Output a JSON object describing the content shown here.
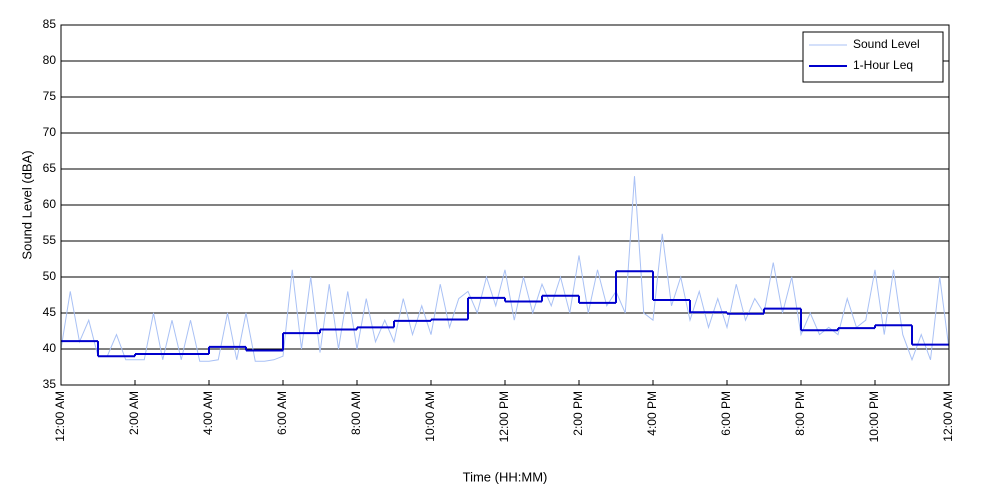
{
  "chart_data": {
    "type": "line",
    "xlabel": "Time (HH:MM)",
    "ylabel": "Sound Level (dBA)",
    "xlim": [
      0,
      24
    ],
    "ylim": [
      35,
      85
    ],
    "yticks": [
      35,
      40,
      45,
      50,
      55,
      60,
      65,
      70,
      75,
      80,
      85
    ],
    "xticks": [
      {
        "value": 0,
        "label": "12:00 AM"
      },
      {
        "value": 2,
        "label": "2:00 AM"
      },
      {
        "value": 4,
        "label": "4:00 AM"
      },
      {
        "value": 6,
        "label": "6:00 AM"
      },
      {
        "value": 8,
        "label": "8:00 AM"
      },
      {
        "value": 10,
        "label": "10:00 AM"
      },
      {
        "value": 12,
        "label": "12:00 PM"
      },
      {
        "value": 14,
        "label": "2:00 PM"
      },
      {
        "value": 16,
        "label": "4:00 PM"
      },
      {
        "value": 18,
        "label": "6:00 PM"
      },
      {
        "value": 20,
        "label": "8:00 PM"
      },
      {
        "value": 22,
        "label": "10:00 PM"
      },
      {
        "value": 24,
        "label": "12:00 AM"
      }
    ],
    "grid": true,
    "legend": "upper right",
    "series": [
      {
        "name": "Sound Level",
        "color": "#a9c1f5",
        "step": false,
        "x": [
          0,
          0.25,
          0.5,
          0.75,
          1,
          1.25,
          1.5,
          1.75,
          2,
          2.25,
          2.5,
          2.75,
          3,
          3.25,
          3.5,
          3.75,
          4,
          4.25,
          4.5,
          4.75,
          5,
          5.25,
          5.5,
          5.75,
          6,
          6.25,
          6.5,
          6.75,
          7,
          7.25,
          7.5,
          7.75,
          8,
          8.25,
          8.5,
          8.75,
          9,
          9.25,
          9.5,
          9.75,
          10,
          10.25,
          10.5,
          10.75,
          11,
          11.25,
          11.5,
          11.75,
          12,
          12.25,
          12.5,
          12.75,
          13,
          13.25,
          13.5,
          13.75,
          14,
          14.25,
          14.5,
          14.75,
          15,
          15.25,
          15.5,
          15.75,
          16,
          16.25,
          16.5,
          16.75,
          17,
          17.25,
          17.5,
          17.75,
          18,
          18.25,
          18.5,
          18.75,
          19,
          19.25,
          19.5,
          19.75,
          20,
          20.25,
          20.5,
          20.75,
          21,
          21.25,
          21.5,
          21.75,
          22,
          22.25,
          22.5,
          22.75,
          23,
          23.25,
          23.5,
          23.75,
          24
        ],
        "values": [
          40,
          48,
          41,
          44,
          39,
          39,
          42,
          38.5,
          38.5,
          38.5,
          45,
          38.5,
          44,
          38.5,
          44,
          38.3,
          38.3,
          38.5,
          45,
          38.5,
          45,
          38.3,
          38.3,
          38.5,
          39,
          51,
          40,
          50,
          39.5,
          49,
          40,
          48,
          40,
          47,
          41,
          44,
          41,
          47,
          42,
          46,
          42,
          49,
          43,
          47,
          48,
          45,
          50,
          46,
          51,
          44,
          50,
          45,
          49,
          46,
          50,
          45,
          53,
          45,
          51,
          46,
          48,
          45,
          64,
          45,
          44,
          56,
          46,
          50,
          44,
          48,
          43,
          47,
          43,
          49,
          44,
          47,
          45,
          52,
          45,
          50,
          42,
          45,
          42,
          43,
          42,
          47,
          43,
          44,
          51,
          42,
          51,
          42,
          38.5,
          42,
          38.5,
          50,
          40
        ]
      },
      {
        "name": "1-Hour Leq",
        "color": "#0000cc",
        "step": true,
        "x": [
          0,
          1,
          2,
          3,
          4,
          5,
          6,
          7,
          8,
          9,
          10,
          11,
          12,
          13,
          14,
          15,
          16,
          17,
          18,
          19,
          20,
          21,
          22,
          23
        ],
        "values": [
          41.1,
          39.0,
          39.3,
          39.3,
          40.3,
          39.8,
          42.2,
          42.7,
          43.0,
          43.9,
          44.1,
          47.1,
          46.6,
          47.4,
          46.4,
          50.8,
          46.8,
          45.1,
          44.9,
          45.6,
          42.6,
          42.9,
          43.3,
          40.6
        ]
      }
    ]
  }
}
